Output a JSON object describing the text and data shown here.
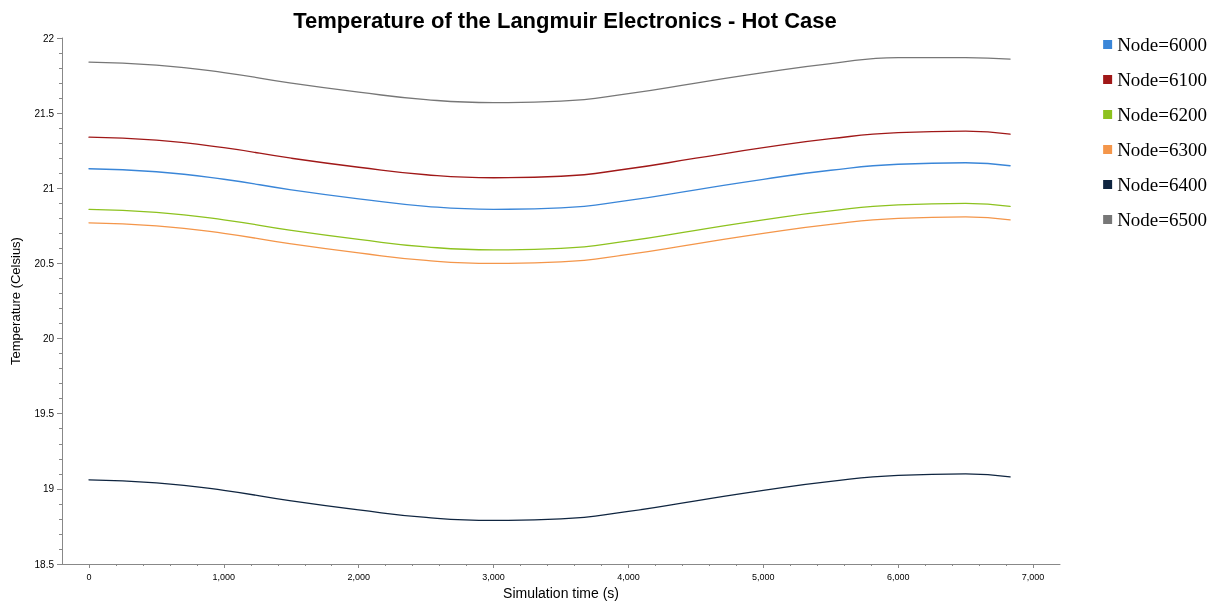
{
  "chart_data": {
    "type": "line",
    "title": "Temperature of the Langmuir Electronics - Hot Case",
    "xlabel": "Simulation time (s)",
    "ylabel": "Temperature (Celsius)",
    "x": [
      0,
      500,
      1000,
      1500,
      2000,
      2500,
      3000,
      3500,
      4000,
      4500,
      5000,
      5500,
      6000,
      6500,
      6830
    ],
    "xlim": [
      -200,
      7200
    ],
    "xticks": [
      {
        "value": 0,
        "label": "0"
      },
      {
        "value": 1000,
        "label": "1,000"
      },
      {
        "value": 2000,
        "label": "2,000"
      },
      {
        "value": 3000,
        "label": "3,000"
      },
      {
        "value": 4000,
        "label": "4,000"
      },
      {
        "value": 5000,
        "label": "5,000"
      },
      {
        "value": 6000,
        "label": "6,000"
      },
      {
        "value": 7000,
        "label": "7,000"
      }
    ],
    "ylim": [
      18.5,
      22
    ],
    "yticks": [
      18.5,
      19,
      19.5,
      20,
      20.5,
      21,
      21.5,
      22
    ],
    "grid": false,
    "legend": "top right",
    "marker": "none",
    "line_style": "solid",
    "series": [
      {
        "name": "Node=6000",
        "color": "#3a86d8",
        "values": [
          21.13,
          21.11,
          21.06,
          20.99,
          20.93,
          20.88,
          20.86,
          20.87,
          20.92,
          20.99,
          21.06,
          21.12,
          21.16,
          21.17,
          21.15
        ]
      },
      {
        "name": "Node=6100",
        "color": "#a01818",
        "values": [
          21.34,
          21.32,
          21.27,
          21.2,
          21.14,
          21.09,
          21.07,
          21.08,
          21.13,
          21.2,
          21.27,
          21.33,
          21.37,
          21.38,
          21.36
        ]
      },
      {
        "name": "Node=6200",
        "color": "#8dc21f",
        "values": [
          20.86,
          20.84,
          20.79,
          20.72,
          20.66,
          20.61,
          20.59,
          20.6,
          20.65,
          20.72,
          20.79,
          20.85,
          20.89,
          20.9,
          20.88
        ]
      },
      {
        "name": "Node=6300",
        "color": "#f4964a",
        "values": [
          20.77,
          20.75,
          20.7,
          20.63,
          20.57,
          20.52,
          20.5,
          20.51,
          20.56,
          20.63,
          20.7,
          20.76,
          20.8,
          20.81,
          20.79
        ]
      },
      {
        "name": "Node=6400",
        "color": "#0f2540",
        "values": [
          19.06,
          19.04,
          18.99,
          18.92,
          18.86,
          18.81,
          18.79,
          18.8,
          18.85,
          18.92,
          18.99,
          19.05,
          19.09,
          19.1,
          19.08
        ]
      },
      {
        "name": "Node=6500",
        "color": "#777777",
        "values": [
          21.84,
          21.82,
          21.77,
          21.7,
          21.64,
          21.59,
          21.57,
          21.58,
          21.63,
          21.7,
          21.77,
          21.83,
          21.87,
          21.87,
          21.86
        ]
      }
    ]
  }
}
